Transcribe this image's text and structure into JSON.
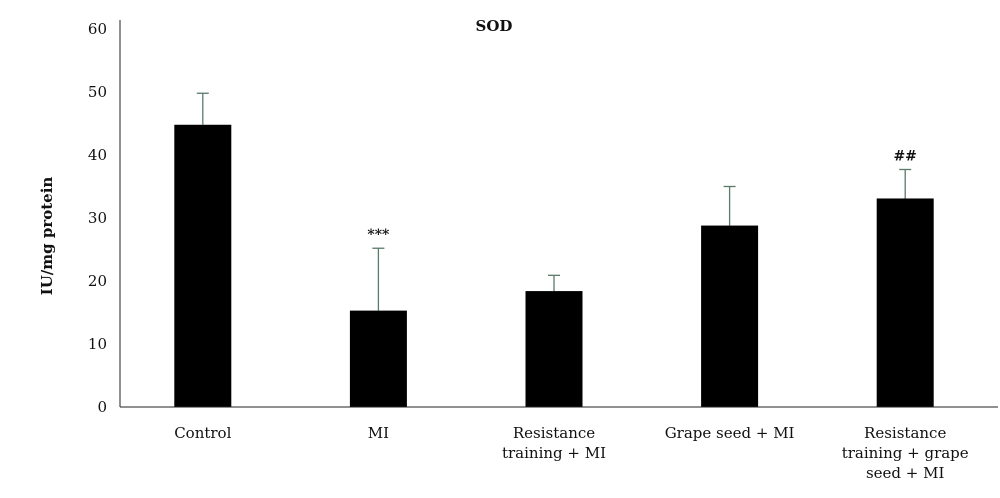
{
  "chart_data": {
    "type": "bar",
    "title": "SOD",
    "ylabel": "IU/mg protein",
    "xlabel": "",
    "ylim": [
      0,
      60
    ],
    "yticks": [
      0,
      10,
      20,
      30,
      40,
      50,
      60
    ],
    "grid": false,
    "categories": [
      [
        "Control"
      ],
      [
        "MI"
      ],
      [
        "Resistance",
        "training + MI"
      ],
      [
        "Grape seed + MI"
      ],
      [
        "Resistance",
        "training + grape",
        "seed + MI"
      ]
    ],
    "values": [
      44.8,
      15.3,
      18.4,
      28.8,
      33.1
    ],
    "errors": [
      5.0,
      9.9,
      2.5,
      6.2,
      4.6
    ],
    "annotations": [
      "",
      "***",
      "",
      "",
      "##"
    ],
    "colors": {
      "bar": "#000000",
      "error_bar": "#5a7a6a",
      "axis": "#222222"
    }
  }
}
